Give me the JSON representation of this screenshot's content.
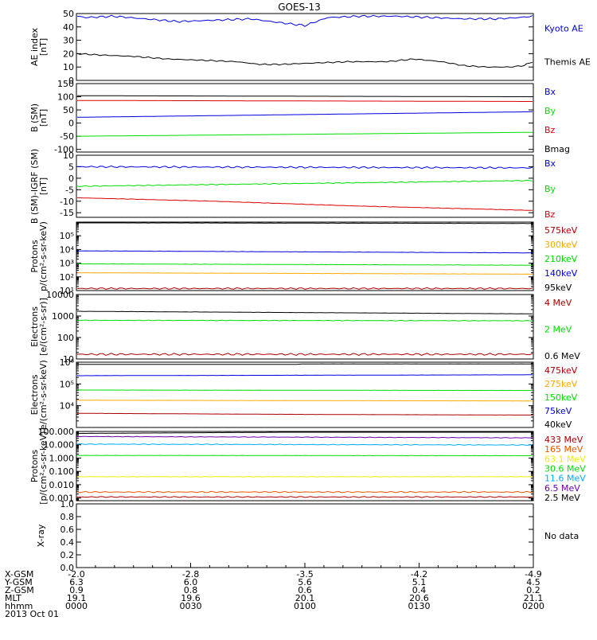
{
  "title": "GOES-13",
  "colors": {
    "black": "#000000",
    "blue": "#0000dd",
    "red": "#dd0000",
    "green": "#00dd00",
    "darkred": "#aa0000",
    "orange": "#ffaa00",
    "lightblue": "#00aaff",
    "yellow": "#eeee00",
    "purple": "#6600aa",
    "orangered": "#ee5500"
  },
  "chart_data": [
    {
      "type": "line",
      "scale": "linear",
      "ylabel": [
        "AE index",
        "[nT]"
      ],
      "ylim": [
        0,
        50
      ],
      "ticks": [
        "0",
        "10",
        "20",
        "30",
        "40",
        "50"
      ],
      "series": [
        {
          "name": "Kyoto AE",
          "color": "blue",
          "x": [
            0,
            0.02,
            0.08,
            0.15,
            0.22,
            0.3,
            0.38,
            0.45,
            0.5,
            0.55,
            0.62,
            0.7,
            0.78,
            0.85,
            0.92,
            0.97,
            1
          ],
          "y": [
            48,
            47,
            48,
            46,
            44,
            45,
            46,
            43,
            41,
            47,
            48,
            48,
            47,
            46,
            46,
            47,
            48
          ],
          "jitter": 0.8
        },
        {
          "name": "Themis AE",
          "color": "black",
          "x": [
            0,
            0.05,
            0.12,
            0.2,
            0.28,
            0.35,
            0.4,
            0.45,
            0.52,
            0.6,
            0.68,
            0.74,
            0.8,
            0.85,
            0.9,
            0.95,
            0.98,
            1
          ],
          "y": [
            20,
            19,
            18,
            16,
            15,
            14,
            12,
            12,
            13,
            14,
            14,
            16,
            14,
            11,
            10,
            10,
            11,
            14
          ],
          "jitter": 0.5
        }
      ]
    },
    {
      "type": "line",
      "scale": "linear",
      "ylabel": [
        "B (SM)",
        "[nT]"
      ],
      "ylim": [
        -110,
        150
      ],
      "ticks": [
        "-100",
        "-50",
        "0",
        "50",
        "100",
        "150"
      ],
      "series": [
        {
          "name": "Bx",
          "color": "blue",
          "x": [
            0,
            1
          ],
          "y": [
            22,
            43
          ],
          "jitter": 0
        },
        {
          "name": "By",
          "color": "green",
          "x": [
            0,
            1
          ],
          "y": [
            -50,
            -35
          ],
          "jitter": 0
        },
        {
          "name": "Bz",
          "color": "red",
          "x": [
            0,
            1
          ],
          "y": [
            86,
            82
          ],
          "jitter": 0
        },
        {
          "name": "Bmag",
          "color": "black",
          "x": [
            0,
            1
          ],
          "y": [
            104,
            100
          ],
          "jitter": 0
        }
      ]
    },
    {
      "type": "line",
      "scale": "linear",
      "ylabel": [
        "B (SM)-IGRF (SM)",
        "[nT]"
      ],
      "ylim": [
        -17,
        10
      ],
      "ticks": [
        "-15",
        "-10",
        "-5",
        "0",
        "5",
        "10"
      ],
      "series": [
        {
          "name": "Bx",
          "color": "blue",
          "x": [
            0,
            1
          ],
          "y": [
            5,
            4.5
          ],
          "jitter": 0.4
        },
        {
          "name": "By",
          "color": "green",
          "x": [
            0,
            1
          ],
          "y": [
            -3.5,
            -1
          ],
          "jitter": 0.2
        },
        {
          "name": "Bz",
          "color": "red",
          "x": [
            0,
            0.3,
            0.6,
            1
          ],
          "y": [
            -8.5,
            -10,
            -12,
            -14
          ],
          "jitter": 0.1
        }
      ]
    },
    {
      "type": "line",
      "scale": "log",
      "ylabel": [
        "Protons",
        "p/(cm²-s-sr-keV)"
      ],
      "ylim": [
        1,
        6
      ],
      "ticks": [
        "10¹",
        "10²",
        "10³",
        "10⁴",
        "10⁵"
      ],
      "tickExp": [
        1,
        2,
        3,
        4,
        5
      ],
      "series": [
        {
          "name": "575keV",
          "color": "darkred",
          "x": [
            0,
            1
          ],
          "y": [
            1.15,
            1.15
          ],
          "jitter": 0.06
        },
        {
          "name": "300keV",
          "color": "orange",
          "x": [
            0,
            1
          ],
          "y": [
            2.3,
            2.2
          ],
          "jitter": 0.01
        },
        {
          "name": "210keV",
          "color": "green",
          "x": [
            0,
            1
          ],
          "y": [
            2.95,
            2.85
          ],
          "jitter": 0.01
        },
        {
          "name": "140keV",
          "color": "blue",
          "x": [
            0,
            1
          ],
          "y": [
            3.9,
            3.75
          ],
          "jitter": 0.01
        },
        {
          "name": "95keV",
          "color": "black",
          "x": [
            0,
            1
          ],
          "y": [
            5.95,
            5.9
          ],
          "jitter": 0.01
        }
      ]
    },
    {
      "type": "line",
      "scale": "log",
      "ylabel": [
        "Electrons",
        "[e/(cm²-s-sr)]"
      ],
      "ylim": [
        1,
        4
      ],
      "ticks": [
        "10",
        "100",
        "1000",
        "10000"
      ],
      "tickExp": [
        1,
        2,
        3,
        4
      ],
      "series": [
        {
          "name": "4 MeV",
          "color": "darkred",
          "x": [
            0,
            1
          ],
          "y": [
            1.22,
            1.22
          ],
          "jitter": 0.05
        },
        {
          "name": "2 MeV",
          "color": "green",
          "x": [
            0,
            1
          ],
          "y": [
            2.8,
            2.78
          ],
          "jitter": 0.015
        },
        {
          "name": "0.6 MeV",
          "color": "black",
          "x": [
            0,
            1
          ],
          "y": [
            3.22,
            3.1
          ],
          "jitter": 0.005
        }
      ]
    },
    {
      "type": "line",
      "scale": "log",
      "ylabel": [
        "Electrons",
        "e/(cm²-s-sr-keV)"
      ],
      "ylim": [
        3,
        6
      ],
      "ticks": [
        "10⁴",
        "10⁵",
        "10⁶"
      ],
      "tickExp": [
        4,
        5,
        6
      ],
      "series": [
        {
          "name": "475keV",
          "color": "darkred",
          "x": [
            0,
            0.5,
            1
          ],
          "y": [
            3.65,
            3.6,
            3.57
          ],
          "jitter": 0.003
        },
        {
          "name": "275keV",
          "color": "orange",
          "x": [
            0,
            1
          ],
          "y": [
            4.25,
            4.22
          ],
          "jitter": 0.003
        },
        {
          "name": "150keV",
          "color": "green",
          "x": [
            0,
            1
          ],
          "y": [
            4.72,
            4.7
          ],
          "jitter": 0.003
        },
        {
          "name": "75keV",
          "color": "blue",
          "x": [
            0,
            1
          ],
          "y": [
            5.38,
            5.42
          ],
          "jitter": 0.003
        },
        {
          "name": "40keV",
          "color": "black",
          "x": [
            0,
            0.48,
            0.5,
            1
          ],
          "y": [
            5.9,
            5.9,
            5.92,
            5.92
          ],
          "jitter": 0.003
        }
      ]
    },
    {
      "type": "line",
      "scale": "log",
      "ylabel": [
        "Protons",
        "[p/(cm²-s-sr-keV)]"
      ],
      "ylim": [
        -3.2,
        2
      ],
      "ticks": [
        "0.001",
        "0.010",
        "0.100",
        "1.000",
        "10.000",
        "100.000"
      ],
      "tickExp": [
        -3,
        -2,
        -1,
        0,
        1,
        2
      ],
      "series": [
        {
          "name": "433 MeV",
          "color": "darkred",
          "x": [
            0,
            1
          ],
          "y": [
            -2.92,
            -2.92
          ],
          "jitter": 0.04
        },
        {
          "name": "165 MeV",
          "color": "orangered",
          "x": [
            0,
            1
          ],
          "y": [
            -2.55,
            -2.55
          ],
          "jitter": 0.05
        },
        {
          "name": "63.1 MeV",
          "color": "yellow",
          "x": [
            0,
            1
          ],
          "y": [
            -1.4,
            -1.4
          ],
          "jitter": 0.02
        },
        {
          "name": "30.6 MeV",
          "color": "green",
          "x": [
            0,
            1
          ],
          "y": [
            0.2,
            0.18
          ],
          "jitter": 0.01
        },
        {
          "name": "11.6 MeV",
          "color": "lightblue",
          "x": [
            0,
            1
          ],
          "y": [
            1.05,
            0.98
          ],
          "jitter": 0.03
        },
        {
          "name": "6.5 MeV",
          "color": "purple",
          "x": [
            0,
            1
          ],
          "y": [
            1.62,
            1.52
          ],
          "jitter": 0.02
        },
        {
          "name": "2.5 MeV",
          "color": "black",
          "x": [
            0,
            0.5,
            1
          ],
          "y": [
            1.85,
            1.95,
            1.95
          ],
          "jitter": 0.005
        }
      ]
    },
    {
      "type": "line",
      "scale": "linear",
      "ylabel": [
        "X-ray",
        ""
      ],
      "ylim": [
        0,
        1
      ],
      "ticks": [
        "0.0",
        "0.2",
        "0.4",
        "0.6",
        "0.8",
        "1.0"
      ],
      "series": [],
      "note": "No data"
    }
  ],
  "xaxis": {
    "rows": [
      {
        "label": "X-GSM",
        "values": [
          "-2.0",
          "-2.8",
          "-3.5",
          "-4.2",
          "-4.9"
        ]
      },
      {
        "label": "Y-GSM",
        "values": [
          "6.3",
          "6.0",
          "5.6",
          "5.1",
          "4.5"
        ]
      },
      {
        "label": "Z-GSM",
        "values": [
          "0.9",
          "0.8",
          "0.6",
          "0.4",
          "0.2"
        ]
      },
      {
        "label": "MLT",
        "values": [
          "19.1",
          "19.6",
          "20.1",
          "20.6",
          "21.1"
        ]
      },
      {
        "label": "hhmm",
        "values": [
          "0000",
          "0030",
          "0100",
          "0130",
          "0200"
        ]
      }
    ],
    "date": "2013 Oct 01"
  }
}
